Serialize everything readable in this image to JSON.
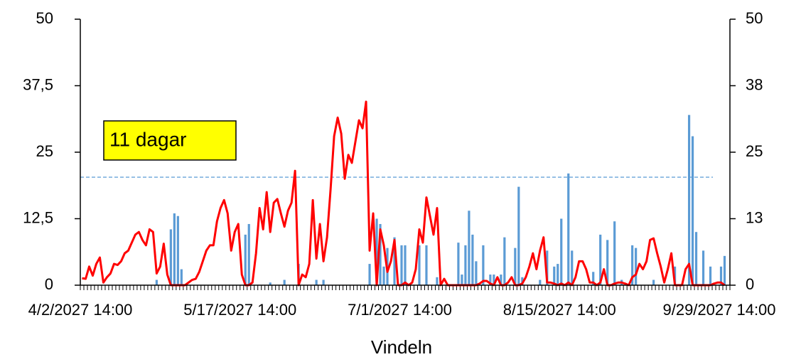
{
  "chart_data": {
    "type": "bar-line",
    "xlabel": "Vindeln",
    "annotation": "11 dagar",
    "threshold": 20.3,
    "categories": [
      "4/2/2027 14:00",
      null,
      null,
      null,
      null,
      null,
      null,
      null,
      null,
      null,
      null,
      null,
      null,
      null,
      null,
      null,
      null,
      null,
      null,
      null,
      null,
      null,
      null,
      null,
      null,
      null,
      null,
      null,
      null,
      null,
      null,
      null,
      null,
      null,
      null,
      null,
      null,
      null,
      null,
      null,
      null,
      null,
      null,
      null,
      null,
      "5/17/2027 14:00",
      null,
      null,
      null,
      null,
      null,
      null,
      null,
      null,
      null,
      null,
      null,
      null,
      null,
      null,
      null,
      null,
      null,
      null,
      null,
      null,
      null,
      null,
      null,
      null,
      null,
      null,
      null,
      null,
      null,
      null,
      null,
      null,
      null,
      null,
      null,
      null,
      null,
      null,
      null,
      null,
      null,
      null,
      null,
      null,
      "7/1/2027 14:00",
      null,
      null,
      null,
      null,
      null,
      null,
      null,
      null,
      null,
      null,
      null,
      null,
      null,
      null,
      null,
      null,
      null,
      null,
      null,
      null,
      null,
      null,
      null,
      null,
      null,
      null,
      null,
      null,
      null,
      null,
      null,
      null,
      null,
      null,
      null,
      null,
      null,
      null,
      null,
      null,
      null,
      null,
      null,
      null,
      "8/15/2027 14:00",
      null,
      null,
      null,
      null,
      null,
      null,
      null,
      null,
      null,
      null,
      null,
      null,
      null,
      null,
      null,
      null,
      null,
      null,
      null,
      null,
      null,
      null,
      null,
      null,
      null,
      null,
      null,
      null,
      null,
      null,
      null,
      null,
      null,
      null,
      null,
      null,
      null,
      null,
      null,
      null,
      null,
      null,
      null,
      null,
      "9/29/2027 14:00",
      null,
      null
    ],
    "series": [
      {
        "type": "bar",
        "axis": "y2",
        "color": "#5b9bd5",
        "values": [
          0,
          0,
          0,
          0,
          0,
          0,
          0,
          0,
          0,
          0,
          0,
          0,
          0,
          0,
          0,
          0,
          0,
          0,
          0,
          0,
          0,
          1,
          0,
          0,
          0,
          10.5,
          13.5,
          13,
          3,
          0,
          0,
          0,
          0,
          0,
          0,
          0,
          0,
          0,
          0,
          0,
          0,
          0,
          0,
          0,
          0,
          0,
          9.5,
          11.5,
          0,
          0,
          0,
          0,
          0,
          0.5,
          0,
          0,
          0,
          1,
          0,
          0,
          0,
          4,
          0,
          0,
          0,
          0,
          1,
          0,
          1,
          0,
          0,
          0,
          0,
          0,
          0,
          0,
          0,
          0,
          0,
          0,
          0,
          4,
          0,
          12.5,
          11.5,
          3.5,
          7,
          0,
          9,
          0,
          7.5,
          7.5,
          0,
          0,
          0,
          7.5,
          0,
          7.5,
          0,
          0,
          1.5,
          0,
          0,
          0,
          0,
          0,
          8,
          2,
          7.5,
          14,
          9.5,
          4.5,
          0,
          7.5,
          0,
          2,
          2,
          0,
          2,
          9,
          0,
          0,
          7,
          18.5,
          1.5,
          0,
          0,
          0,
          0,
          1,
          0,
          6.5,
          0,
          3.5,
          4,
          12.5,
          0,
          21,
          6.5,
          0,
          0,
          0,
          0,
          0,
          2.5,
          0,
          9.5,
          0,
          8.5,
          0,
          12,
          0,
          1,
          0,
          0,
          7.5,
          7,
          0,
          0,
          0,
          0,
          1,
          0,
          0,
          0,
          0,
          0,
          3.5,
          0,
          0,
          0,
          32,
          28,
          10,
          0,
          6.5,
          0,
          3.5,
          0,
          0,
          3.5,
          5.5,
          0
        ]
      },
      {
        "type": "line",
        "color": "#ff0000",
        "values": [
          1.3,
          1.2,
          3.5,
          1.8,
          4,
          5.2,
          0.5,
          1.5,
          2.2,
          4,
          3.8,
          4.5,
          6,
          6.5,
          8,
          9.5,
          10,
          8.5,
          7.5,
          10.5,
          10,
          2.2,
          3.5,
          7.8,
          2,
          0,
          0,
          0,
          0,
          0,
          0.5,
          1,
          1.2,
          2.5,
          4.5,
          6.5,
          7.5,
          7.5,
          12,
          14.5,
          16,
          13.5,
          6.5,
          10,
          11.5,
          2,
          0,
          0,
          0.5,
          6,
          14.5,
          10.5,
          17.5,
          10,
          15.5,
          16.2,
          13.5,
          11,
          14,
          15.5,
          21.5,
          0,
          2,
          1.5,
          4,
          16,
          5,
          11.5,
          4.5,
          9,
          18,
          28,
          31.5,
          28.5,
          20,
          24.5,
          23,
          27,
          31,
          29.5,
          34.5,
          6.5,
          13.5,
          0,
          10.5,
          7.5,
          2.5,
          4.5,
          8.5,
          0,
          0,
          0.5,
          0,
          0.5,
          3,
          10.5,
          8,
          16.5,
          13,
          9.5,
          14.5,
          0,
          1.2,
          0,
          0,
          0,
          0,
          0,
          0,
          0,
          0,
          0,
          0.3,
          0.8,
          0.8,
          0.3,
          0,
          1.5,
          0,
          0,
          0.5,
          1.5,
          0,
          0,
          0.3,
          1.5,
          3.5,
          6,
          3,
          6.5,
          9,
          0.5,
          0.5,
          0.3,
          0,
          0.3,
          0,
          0.5,
          0,
          1.5,
          4.5,
          4.5,
          3,
          0.5,
          0.5,
          0,
          0.5,
          3,
          0,
          0,
          0.3,
          0.5,
          0.5,
          0.3,
          0,
          1.5,
          2,
          4,
          3,
          4.5,
          8.5,
          8.8,
          6,
          3.5,
          0.5,
          3,
          6,
          0,
          0,
          0,
          3,
          4,
          0,
          0,
          0,
          0,
          0,
          0,
          0.3,
          0.5,
          0.5,
          0,
          null
        ]
      }
    ],
    "ylim": [
      0,
      50
    ],
    "yticks": [
      0,
      {
        "value": 12.5,
        "label": "12,5"
      },
      25,
      {
        "value": 37.5,
        "label": "37,5"
      },
      50
    ],
    "y2lim": [
      0,
      50
    ],
    "y2ticks": [
      0,
      {
        "value": 12.5,
        "label": "13"
      },
      25,
      {
        "value": 37.5,
        "label": "38"
      },
      50
    ]
  }
}
